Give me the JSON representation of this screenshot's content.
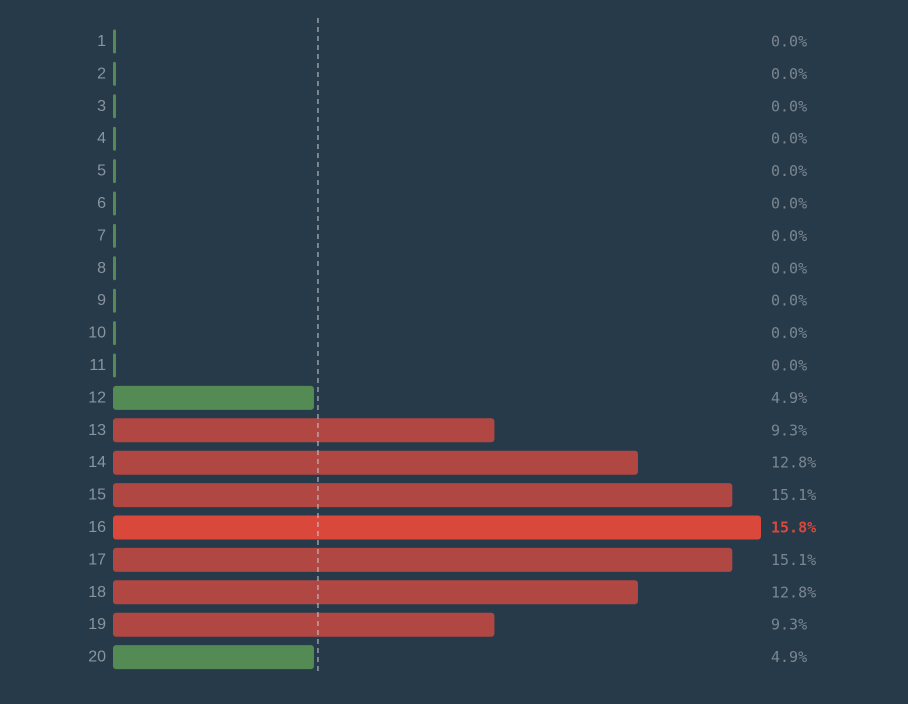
{
  "chart_data": {
    "type": "bar",
    "orientation": "horizontal",
    "categories": [
      "1",
      "2",
      "3",
      "4",
      "5",
      "6",
      "7",
      "8",
      "9",
      "10",
      "11",
      "12",
      "13",
      "14",
      "15",
      "16",
      "17",
      "18",
      "19",
      "20"
    ],
    "values": [
      0.0,
      0.0,
      0.0,
      0.0,
      0.0,
      0.0,
      0.0,
      0.0,
      0.0,
      0.0,
      0.0,
      4.9,
      9.3,
      12.8,
      15.1,
      15.8,
      15.1,
      12.8,
      9.3,
      4.9
    ],
    "value_labels": [
      "0.0%",
      "0.0%",
      "0.0%",
      "0.0%",
      "0.0%",
      "0.0%",
      "0.0%",
      "0.0%",
      "0.0%",
      "0.0%",
      "0.0%",
      "4.9%",
      "9.3%",
      "12.8%",
      "15.1%",
      "15.8%",
      "15.1%",
      "12.8%",
      "9.3%",
      "4.9%"
    ],
    "bar_status": [
      "ok",
      "ok",
      "ok",
      "ok",
      "ok",
      "ok",
      "ok",
      "ok",
      "ok",
      "ok",
      "ok",
      "ok",
      "over",
      "over",
      "over",
      "max",
      "over",
      "over",
      "over",
      "ok"
    ],
    "xlim": [
      0,
      15.8
    ],
    "threshold": 4.9,
    "grid": false,
    "legend": "none",
    "colors": {
      "background": "#263a4a",
      "ok": "#548a54",
      "over": "#b04742",
      "max": "#d9483b",
      "threshold_line": "#c8ccd0",
      "category_text": "#8a949c",
      "value_text": "#7b868f",
      "highlight_text": "#d9483b"
    }
  }
}
